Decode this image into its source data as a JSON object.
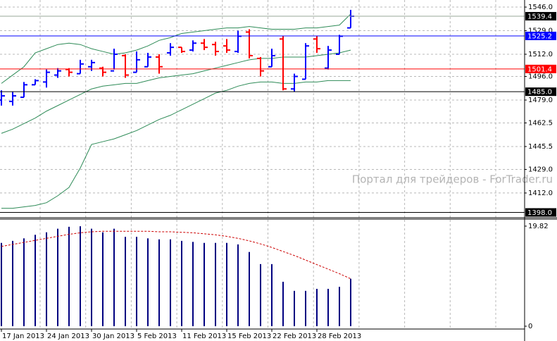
{
  "watermark": "Портал для трейдеров - ForTrader.ru",
  "chart_data": [
    {
      "type": "ohlc",
      "up_color": "#0000ff",
      "down_color": "#ff0000",
      "grid": true,
      "ylim": [
        1394.7,
        1551.1
      ],
      "yticks": [
        {
          "value": 1546,
          "label": "1546.0"
        },
        {
          "value": 1529,
          "label": "1529.0"
        },
        {
          "value": 1512,
          "label": "1512.0"
        },
        {
          "value": 1496,
          "label": "1496.0"
        },
        {
          "value": 1479,
          "label": "1479.0"
        },
        1462.5,
        1445.5,
        {
          "value": 1429,
          "label": "1429.0"
        },
        {
          "value": 1412,
          "label": "1412.0"
        }
      ],
      "open": [
        1479,
        1478,
        1481,
        1490,
        1492,
        1497,
        1501,
        1498,
        1503,
        1502,
        1500,
        1511,
        1499,
        1503,
        1510,
        1513,
        1517,
        1515,
        1520,
        1519,
        1518,
        1514,
        1528,
        1509,
        1503,
        1523,
        1487,
        1494,
        1523,
        1502,
        1512,
        1531
      ],
      "high": [
        1486,
        1485,
        1492,
        1494,
        1501,
        1502,
        1502,
        1508,
        1508,
        1503,
        1516,
        1512,
        1514,
        1513,
        1512,
        1520,
        1517,
        1522,
        1523,
        1521,
        1523,
        1529,
        1530,
        1510,
        1516,
        1525,
        1498,
        1520,
        1525,
        1518,
        1526,
        1544
      ],
      "low": [
        1475,
        1475,
        1481,
        1490,
        1488,
        1495,
        1496,
        1498,
        1500,
        1496,
        1501,
        1495,
        1499,
        1503,
        1498,
        1511,
        1513,
        1514,
        1515,
        1511,
        1513,
        1513,
        1509,
        1496,
        1503,
        1486,
        1485,
        1494,
        1513,
        1501,
        1512,
        1531
      ],
      "close": [
        1482,
        1482,
        1490,
        1493,
        1499,
        1500,
        1499,
        1505,
        1506,
        1499,
        1512,
        1497,
        1508,
        1510,
        1503,
        1517,
        1514,
        1520,
        1517,
        1514,
        1515,
        1525,
        1511,
        1500,
        1511,
        1487,
        1496,
        1518,
        1516,
        1515,
        1525,
        1539.4
      ],
      "bands": [
        {
          "color": "#2e8b57",
          "values": [
            1491,
            1497,
            1503,
            1513,
            1516,
            1519,
            1520,
            1519,
            1516,
            1514,
            1512,
            1513,
            1515,
            1518,
            1522,
            1524,
            1527,
            1528,
            1529,
            1530,
            1531,
            1531,
            1532,
            1531,
            1530,
            1530,
            1530,
            1531,
            1531,
            1532,
            1533,
            1541
          ]
        },
        {
          "color": "#2e8b57",
          "values": [
            1455,
            1458,
            1462,
            1466,
            1471,
            1475,
            1479,
            1483,
            1487,
            1489,
            1490,
            1491,
            1491,
            1493,
            1495,
            1496,
            1497,
            1498,
            1500,
            1502,
            1504,
            1506,
            1508,
            1509,
            1509,
            1510,
            1510,
            1510,
            1511,
            1512,
            1513,
            1515
          ]
        },
        {
          "color": "#2e8b57",
          "values": [
            1401,
            1401,
            1402,
            1403,
            1405,
            1410,
            1416,
            1430,
            1447,
            1449,
            1451,
            1454,
            1457,
            1461,
            1465,
            1468,
            1472,
            1476,
            1480,
            1484,
            1486,
            1489,
            1491,
            1492,
            1492,
            1491,
            1491,
            1492,
            1492,
            1493,
            1493,
            1493
          ]
        }
      ],
      "price_levels": [
        {
          "value": 1539.4,
          "color": "#000000",
          "line": "#9aa89a"
        },
        {
          "value": 1525.2,
          "color": "#0000ff",
          "line": "#0000ff"
        },
        {
          "value": 1501.4,
          "color": "#ff0000",
          "line": "#ff0000"
        },
        {
          "value": 1485,
          "label": "1485.0",
          "color": "#000000",
          "line": "#000000"
        },
        {
          "value": 1398,
          "label": "1398.0",
          "color": "#000000",
          "line": "#000000"
        }
      ]
    },
    {
      "type": "bar",
      "color": "#000080",
      "grid": true,
      "ylim": [
        -0.42,
        21.07
      ],
      "yticks": [
        19.82,
        0
      ],
      "categories": [
        "17 Jan 2013",
        null,
        null,
        null,
        "24 Jan 2013",
        null,
        null,
        null,
        "30 Jan 2013",
        null,
        null,
        null,
        "5 Feb 2013",
        null,
        null,
        null,
        "11 Feb 2013",
        null,
        null,
        null,
        "15 Feb 2013",
        null,
        null,
        null,
        "22 Feb 2013",
        null,
        null,
        null,
        "28 Feb 2013",
        null,
        null,
        null
      ],
      "values": [
        16.5,
        16.9,
        17.4,
        18.1,
        18.6,
        19.3,
        19.7,
        19.8,
        19.3,
        18.6,
        19.3,
        17.7,
        17.7,
        17.4,
        17.2,
        17.2,
        16.9,
        16.7,
        16.5,
        16.5,
        16.5,
        16.2,
        14.7,
        12.3,
        12.3,
        8.8,
        7.0,
        7.0,
        7.4,
        7.4,
        7.8,
        9.4
      ],
      "ma": {
        "color": "#cc0000",
        "values": [
          15.8,
          16.2,
          16.6,
          17.0,
          17.4,
          17.8,
          18.2,
          18.5,
          18.7,
          18.8,
          18.8,
          18.8,
          18.8,
          18.8,
          18.7,
          18.7,
          18.6,
          18.5,
          18.3,
          18.1,
          17.8,
          17.4,
          16.9,
          16.3,
          15.6,
          14.8,
          14.0,
          13.1,
          12.2,
          11.3,
          10.4,
          9.4
        ]
      }
    }
  ]
}
